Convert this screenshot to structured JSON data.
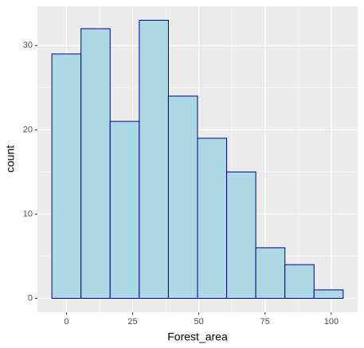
{
  "chart_data": {
    "type": "histogram",
    "xlabel": "Forest_area",
    "ylabel": "count",
    "bins": [
      -5.5,
      5.5,
      16.5,
      27.5,
      38.5,
      49.5,
      60.5,
      71.5,
      82.5,
      93.5,
      104.5
    ],
    "values": [
      29,
      32,
      21,
      33,
      24,
      19,
      15,
      6,
      4,
      1
    ],
    "color": "#add8e6",
    "edgecolor": "#00008b",
    "xlim": [
      -10.95,
      109.95
    ],
    "xticks": [
      0,
      25,
      50,
      75,
      100
    ],
    "ylim": [
      -1.65,
      34.65
    ],
    "yticks": [
      0,
      10,
      20,
      30
    ],
    "grid": true
  }
}
